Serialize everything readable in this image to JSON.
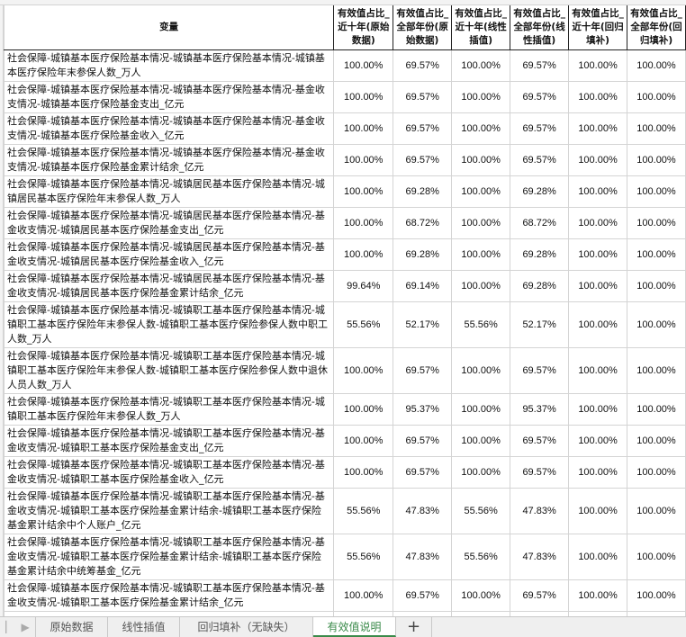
{
  "header": {
    "variable": "变量",
    "columns": [
      "有效值占比_近十年(原始数据)",
      "有效值占比_全部年份(原始数据)",
      "有效值占比_近十年(线性插值)",
      "有效值占比_全部年份(线性插值)",
      "有效值占比_近十年(回归填补)",
      "有效值占比_全部年份(回归填补)"
    ]
  },
  "rows": [
    {
      "name": "社会保障-城镇基本医疗保险基本情况-城镇基本医疗保险基本情况-城镇基本医疗保险年末参保人数_万人",
      "values": [
        "100.00%",
        "69.57%",
        "100.00%",
        "69.57%",
        "100.00%",
        "100.00%"
      ]
    },
    {
      "name": "社会保障-城镇基本医疗保险基本情况-城镇基本医疗保险基本情况-基金收支情况-城镇基本医疗保险基金支出_亿元",
      "values": [
        "100.00%",
        "69.57%",
        "100.00%",
        "69.57%",
        "100.00%",
        "100.00%"
      ]
    },
    {
      "name": "社会保障-城镇基本医疗保险基本情况-城镇基本医疗保险基本情况-基金收支情况-城镇基本医疗保险基金收入_亿元",
      "values": [
        "100.00%",
        "69.57%",
        "100.00%",
        "69.57%",
        "100.00%",
        "100.00%"
      ]
    },
    {
      "name": "社会保障-城镇基本医疗保险基本情况-城镇基本医疗保险基本情况-基金收支情况-城镇基本医疗保险基金累计结余_亿元",
      "values": [
        "100.00%",
        "69.57%",
        "100.00%",
        "69.57%",
        "100.00%",
        "100.00%"
      ]
    },
    {
      "name": "社会保障-城镇基本医疗保险基本情况-城镇居民基本医疗保险基本情况-城镇居民基本医疗保险年末参保人数_万人",
      "values": [
        "100.00%",
        "69.28%",
        "100.00%",
        "69.28%",
        "100.00%",
        "100.00%"
      ]
    },
    {
      "name": "社会保障-城镇基本医疗保险基本情况-城镇居民基本医疗保险基本情况-基金收支情况-城镇居民基本医疗保险基金支出_亿元",
      "values": [
        "100.00%",
        "68.72%",
        "100.00%",
        "68.72%",
        "100.00%",
        "100.00%"
      ]
    },
    {
      "name": "社会保障-城镇基本医疗保险基本情况-城镇居民基本医疗保险基本情况-基金收支情况-城镇居民基本医疗保险基金收入_亿元",
      "values": [
        "100.00%",
        "69.28%",
        "100.00%",
        "69.28%",
        "100.00%",
        "100.00%"
      ]
    },
    {
      "name": "社会保障-城镇基本医疗保险基本情况-城镇居民基本医疗保险基本情况-基金收支情况-城镇居民基本医疗保险基金累计结余_亿元",
      "values": [
        "99.64%",
        "69.14%",
        "100.00%",
        "69.28%",
        "100.00%",
        "100.00%"
      ]
    },
    {
      "name": "社会保障-城镇基本医疗保险基本情况-城镇职工基本医疗保险基本情况-城镇职工基本医疗保险年末参保人数-城镇职工基本医疗保险参保人数中职工人数_万人",
      "values": [
        "55.56%",
        "52.17%",
        "55.56%",
        "52.17%",
        "100.00%",
        "100.00%"
      ]
    },
    {
      "name": "社会保障-城镇基本医疗保险基本情况-城镇职工基本医疗保险基本情况-城镇职工基本医疗保险年末参保人数-城镇职工基本医疗保险参保人数中退休人员人数_万人",
      "values": [
        "100.00%",
        "69.57%",
        "100.00%",
        "69.57%",
        "100.00%",
        "100.00%"
      ]
    },
    {
      "name": "社会保障-城镇基本医疗保险基本情况-城镇职工基本医疗保险基本情况-城镇职工基本医疗保险年末参保人数_万人",
      "values": [
        "100.00%",
        "95.37%",
        "100.00%",
        "95.37%",
        "100.00%",
        "100.00%"
      ]
    },
    {
      "name": "社会保障-城镇基本医疗保险基本情况-城镇职工基本医疗保险基本情况-基金收支情况-城镇职工基本医疗保险基金支出_亿元",
      "values": [
        "100.00%",
        "69.57%",
        "100.00%",
        "69.57%",
        "100.00%",
        "100.00%"
      ]
    },
    {
      "name": "社会保障-城镇基本医疗保险基本情况-城镇职工基本医疗保险基本情况-基金收支情况-城镇职工基本医疗保险基金收入_亿元",
      "values": [
        "100.00%",
        "69.57%",
        "100.00%",
        "69.57%",
        "100.00%",
        "100.00%"
      ]
    },
    {
      "name": "社会保障-城镇基本医疗保险基本情况-城镇职工基本医疗保险基本情况-基金收支情况-城镇职工基本医疗保险基金累计结余-城镇职工基本医疗保险基金累计结余中个人账户_亿元",
      "values": [
        "55.56%",
        "47.83%",
        "55.56%",
        "47.83%",
        "100.00%",
        "100.00%"
      ]
    },
    {
      "name": "社会保障-城镇基本医疗保险基本情况-城镇职工基本医疗保险基本情况-基金收支情况-城镇职工基本医疗保险基金累计结余-城镇职工基本医疗保险基金累计结余中统筹基金_亿元",
      "values": [
        "55.56%",
        "47.83%",
        "55.56%",
        "47.83%",
        "100.00%",
        "100.00%"
      ]
    },
    {
      "name": "社会保障-城镇基本医疗保险基本情况-城镇职工基本医疗保险基本情况-基金收支情况-城镇职工基本医疗保险基金累计结余_亿元",
      "values": [
        "100.00%",
        "69.57%",
        "100.00%",
        "69.57%",
        "100.00%",
        "100.00%"
      ]
    }
  ],
  "sheet_tabs": [
    {
      "label": "原始数据",
      "active": false
    },
    {
      "label": "线性插值",
      "active": false
    },
    {
      "label": "回归填补（无缺失）",
      "active": false
    },
    {
      "label": "有效值说明",
      "active": true
    }
  ],
  "add_sheet_label": "+",
  "colors": {
    "active_tab": "#3a8a4a",
    "grid": "#d4d4d4"
  }
}
